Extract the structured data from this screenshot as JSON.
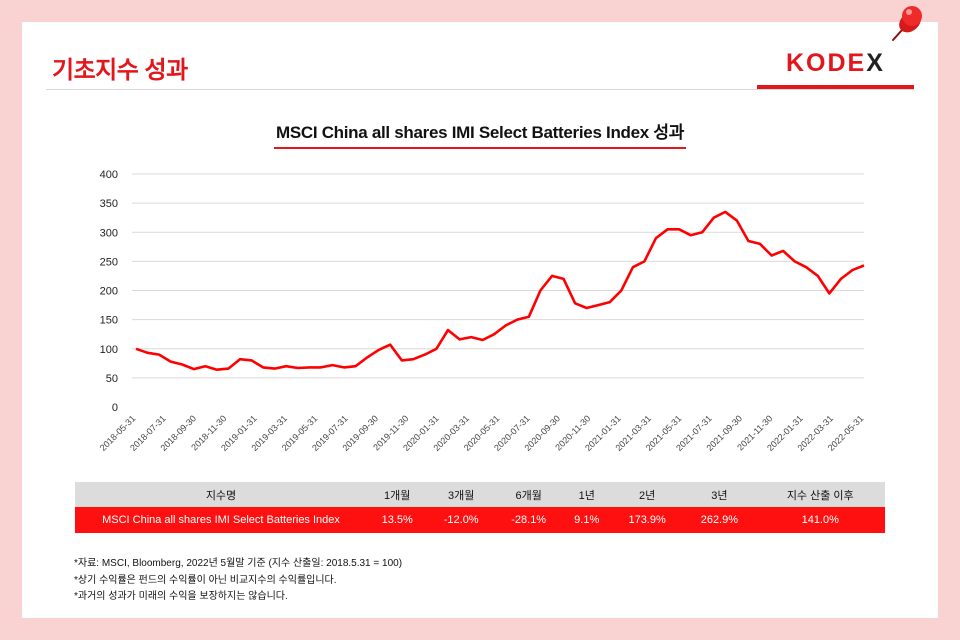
{
  "header": {
    "title": "기초지수 성과",
    "brand_main": "KODE",
    "brand_x": "X"
  },
  "colors": {
    "accent": "#e3161b",
    "background": "#f9d2d2",
    "line": "#ff0000",
    "table_header": "#dcdcdc",
    "table_row": "#ff1010"
  },
  "chart_data": {
    "type": "line",
    "title": "MSCI China all shares IMI Select Batteries Index 성과",
    "xlabel": "",
    "ylabel": "",
    "ylim": [
      0,
      400
    ],
    "yticks": [
      "0",
      "50",
      "100",
      "150",
      "200",
      "250",
      "300",
      "350",
      "400"
    ],
    "xticks": [
      "2018-05-31",
      "2018-07-31",
      "2018-09-30",
      "2018-11-30",
      "2019-01-31",
      "2019-03-31",
      "2019-05-31",
      "2019-07-31",
      "2019-09-30",
      "2019-11-30",
      "2020-01-31",
      "2020-03-31",
      "2020-05-31",
      "2020-07-31",
      "2020-09-30",
      "2020-11-30",
      "2021-01-31",
      "2021-03-31",
      "2021-05-31",
      "2021-07-31",
      "2021-09-30",
      "2021-11-30",
      "2022-01-31",
      "2022-03-31",
      "2022-05-31"
    ],
    "grid": "horizontal",
    "series": [
      {
        "values": [
          100,
          93,
          90,
          78,
          73,
          65,
          70,
          64,
          66,
          82,
          80,
          68,
          66,
          70,
          67,
          68,
          68,
          72,
          68,
          70,
          85,
          98,
          107,
          80,
          82,
          90,
          100,
          132,
          116,
          120,
          115,
          125,
          140,
          150,
          155,
          200,
          225,
          220,
          178,
          170,
          175,
          180,
          200,
          240,
          250,
          290,
          305,
          305,
          295,
          300,
          325,
          335,
          320,
          285,
          280,
          260,
          268,
          250,
          240,
          225,
          195,
          220,
          235,
          243
        ]
      }
    ]
  },
  "table": {
    "headers": [
      "지수명",
      "1개월",
      "3개월",
      "6개월",
      "1년",
      "2년",
      "3년",
      "지수 산출 이후"
    ],
    "row": [
      "MSCI China all shares IMI Select Batteries Index",
      "13.5%",
      "-12.0%",
      "-28.1%",
      "9.1%",
      "173.9%",
      "262.9%",
      "141.0%"
    ]
  },
  "notes": [
    "*자료: MSCI, Bloomberg, 2022년 5월말 기준 (지수 산출일: 2018.5.31 = 100)",
    "*상기 수익률은 펀드의 수익률이 아닌 비교지수의 수익률입니다.",
    "*과거의 성과가 미래의 수익을 보장하지는 않습니다."
  ]
}
